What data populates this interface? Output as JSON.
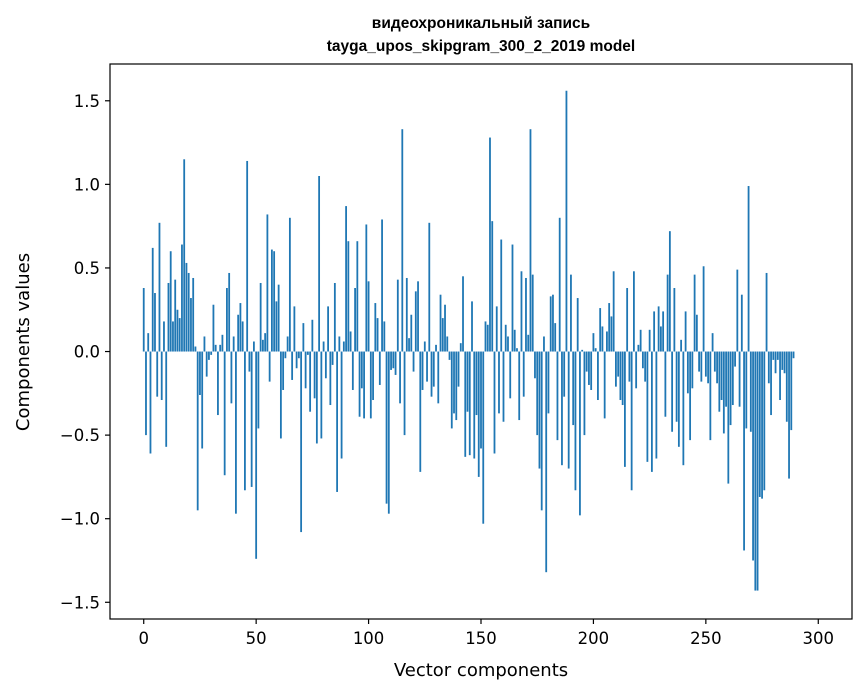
{
  "chart_data": {
    "type": "bar",
    "title": [
      "видеохроникальный запись",
      "tayga_upos_skipgram_300_2_2019 model"
    ],
    "xlabel": "Vector components",
    "ylabel": "Components values",
    "xlim": [
      -15,
      315
    ],
    "ylim": [
      -1.6,
      1.72
    ],
    "xticks": [
      0,
      50,
      100,
      150,
      200,
      250,
      300
    ],
    "xtick_labels": [
      "0",
      "50",
      "100",
      "150",
      "200",
      "250",
      "300"
    ],
    "yticks": [
      -1.5,
      -1.0,
      -0.5,
      0.0,
      0.5,
      1.0,
      1.5
    ],
    "ytick_labels": [
      "−1.5",
      "−1.0",
      "−0.5",
      "0.0",
      "0.5",
      "1.0",
      "1.5"
    ],
    "grid": false,
    "legend": "none",
    "bar_color": "#1f77b4",
    "values": [
      0.38,
      -0.5,
      0.11,
      -0.61,
      0.62,
      0.35,
      -0.27,
      0.77,
      -0.29,
      0.18,
      -0.57,
      0.41,
      0.6,
      0.18,
      0.43,
      0.25,
      0.2,
      0.64,
      1.15,
      0.53,
      0.47,
      0.32,
      0.44,
      0.03,
      -0.95,
      -0.26,
      -0.58,
      0.09,
      -0.15,
      -0.05,
      -0.02,
      0.28,
      0.04,
      -0.38,
      0.04,
      0.1,
      -0.74,
      0.38,
      0.47,
      -0.31,
      0.09,
      -0.97,
      0.22,
      0.29,
      0.18,
      -0.83,
      1.14,
      -0.12,
      -0.81,
      0.06,
      -1.24,
      -0.46,
      0.41,
      0.07,
      0.11,
      0.82,
      -0.18,
      0.61,
      0.6,
      0.3,
      0.4,
      -0.52,
      -0.23,
      -0.04,
      0.09,
      0.8,
      -0.17,
      0.27,
      -0.1,
      -0.04,
      -1.08,
      0.17,
      -0.22,
      -0.02,
      -0.36,
      0.19,
      -0.28,
      -0.55,
      1.05,
      -0.52,
      0.06,
      -0.16,
      0.27,
      -0.32,
      -0.08,
      0.41,
      -0.84,
      0.09,
      -0.64,
      0.06,
      0.87,
      0.66,
      0.12,
      -0.23,
      0.38,
      0.66,
      -0.39,
      -0.22,
      -0.4,
      0.76,
      0.42,
      -0.4,
      -0.29,
      0.29,
      0.2,
      -0.2,
      0.79,
      0.18,
      -0.91,
      -0.97,
      -0.11,
      -0.1,
      -0.14,
      0.43,
      -0.31,
      1.33,
      -0.5,
      0.44,
      0.08,
      0.22,
      -0.12,
      0.36,
      0.42,
      -0.72,
      -0.23,
      0.06,
      -0.18,
      0.77,
      -0.27,
      -0.21,
      0.04,
      -0.31,
      0.34,
      0.2,
      0.28,
      0.09,
      -0.05,
      -0.46,
      -0.37,
      -0.41,
      -0.21,
      0.05,
      0.45,
      -0.63,
      -0.36,
      -0.62,
      0.3,
      -0.64,
      -0.38,
      -0.75,
      -0.58,
      -1.03,
      0.18,
      0.16,
      1.28,
      0.78,
      -0.61,
      0.27,
      -0.37,
      0.67,
      -0.42,
      0.16,
      0.09,
      -0.28,
      0.64,
      0.13,
      0.02,
      -0.41,
      0.48,
      -0.27,
      0.44,
      0.1,
      1.33,
      0.46,
      -0.16,
      -0.5,
      -0.7,
      -0.95,
      0.09,
      -1.32,
      -0.37,
      0.33,
      0.34,
      0.17,
      -0.53,
      0.8,
      -0.68,
      -0.27,
      1.56,
      -0.7,
      0.46,
      -0.44,
      -0.83,
      0.32,
      -0.98,
      0.01,
      -0.5,
      -0.12,
      -0.2,
      -0.23,
      0.11,
      0.02,
      -0.29,
      0.26,
      0.15,
      -0.4,
      0.12,
      0.29,
      0.21,
      0.48,
      -0.21,
      -0.15,
      -0.29,
      -0.32,
      -0.69,
      0.38,
      -0.18,
      -0.83,
      0.48,
      -0.22,
      0.04,
      0.13,
      -0.1,
      -0.18,
      -0.66,
      0.13,
      -0.72,
      0.24,
      -0.64,
      0.27,
      0.15,
      0.24,
      -0.39,
      0.46,
      0.72,
      -0.48,
      0.38,
      -0.42,
      -0.57,
      0.07,
      -0.68,
      0.24,
      -0.25,
      -0.53,
      -0.22,
      0.46,
      0.22,
      -0.12,
      -0.18,
      0.51,
      -0.15,
      -0.19,
      -0.53,
      0.11,
      -0.12,
      -0.19,
      -0.36,
      -0.29,
      -0.49,
      -0.33,
      -0.79,
      -0.44,
      -0.32,
      -0.09,
      0.49,
      -0.33,
      0.34,
      -1.19,
      -0.46,
      0.99,
      -0.48,
      -1.25,
      -1.43,
      -1.43,
      -0.87,
      -0.88,
      -0.83,
      0.47,
      -0.19,
      -0.38,
      -0.05,
      -0.13,
      -0.05,
      -0.29,
      -0.11,
      -0.13,
      -0.42,
      -0.76,
      -0.47,
      -0.04
    ]
  }
}
